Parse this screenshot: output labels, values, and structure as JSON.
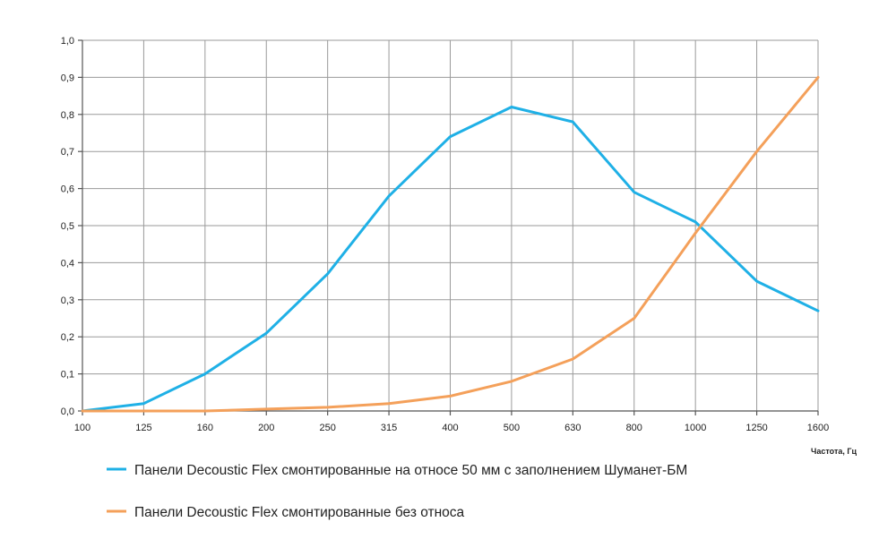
{
  "chart_data": {
    "type": "line",
    "title": "",
    "xlabel": "Частота, Гц",
    "ylabel": "",
    "categories": [
      "100",
      "125",
      "160",
      "200",
      "250",
      "315",
      "400",
      "500",
      "630",
      "800",
      "1000",
      "1250",
      "1600"
    ],
    "yticks": [
      "0,0",
      "0,1",
      "0,2",
      "0,3",
      "0,4",
      "0,5",
      "0,6",
      "0,7",
      "0,8",
      "0,9",
      "1,0"
    ],
    "ylim": [
      0,
      1
    ],
    "grid": true,
    "legend_position": "bottom",
    "series": [
      {
        "name": "Панели Decoustic Flex смонтированные на относе 50 мм с заполнением Шуманет-БМ",
        "color": "#1fb0e6",
        "values": [
          0.0,
          0.02,
          0.1,
          0.21,
          0.37,
          0.58,
          0.74,
          0.82,
          0.78,
          0.59,
          0.51,
          0.35,
          0.27
        ]
      },
      {
        "name": "Панели Decoustic Flex смонтированные без относа",
        "color": "#f4a05a",
        "values": [
          0.0,
          0.0,
          0.0,
          0.005,
          0.01,
          0.02,
          0.04,
          0.08,
          0.14,
          0.25,
          0.48,
          0.7,
          0.9
        ]
      }
    ]
  }
}
